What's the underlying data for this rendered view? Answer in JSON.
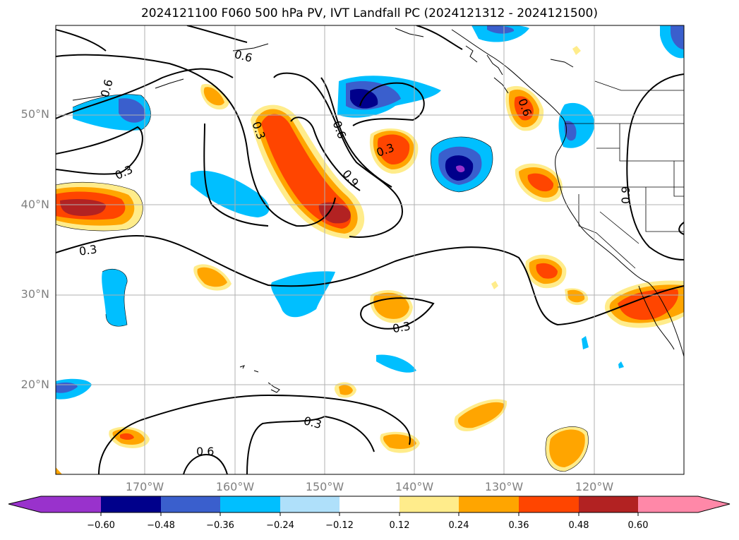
{
  "title": "2024121100 F060 500 hPa PV, IVT Landfall PC (2024121312 - 2024121500)",
  "map": {
    "lat_labels": [
      "50°N",
      "40°N",
      "30°N",
      "20°N"
    ],
    "lon_labels": [
      "170°W",
      "160°W",
      "150°W",
      "140°W",
      "130°W",
      "120°W"
    ],
    "contour_labels": [
      "0.6",
      "0.6",
      "0.3",
      "0.3",
      "0.3",
      "0.6",
      "0.9",
      "0.3",
      "0.3",
      "0.6",
      "0.3",
      "0.6",
      "0.9"
    ],
    "grid": true
  },
  "colorbar": {
    "ticks": [
      "−0.60",
      "−0.48",
      "−0.36",
      "−0.24",
      "−0.12",
      "0.12",
      "0.24",
      "0.36",
      "0.48",
      "0.60"
    ],
    "colors": [
      "#9932cc",
      "#00008b",
      "#3a5fcd",
      "#00bfff",
      "#afe0fa",
      "#ffffff",
      "#ffec8b",
      "#ffa500",
      "#ff4500",
      "#b22222",
      "#ff88a8"
    ]
  }
}
